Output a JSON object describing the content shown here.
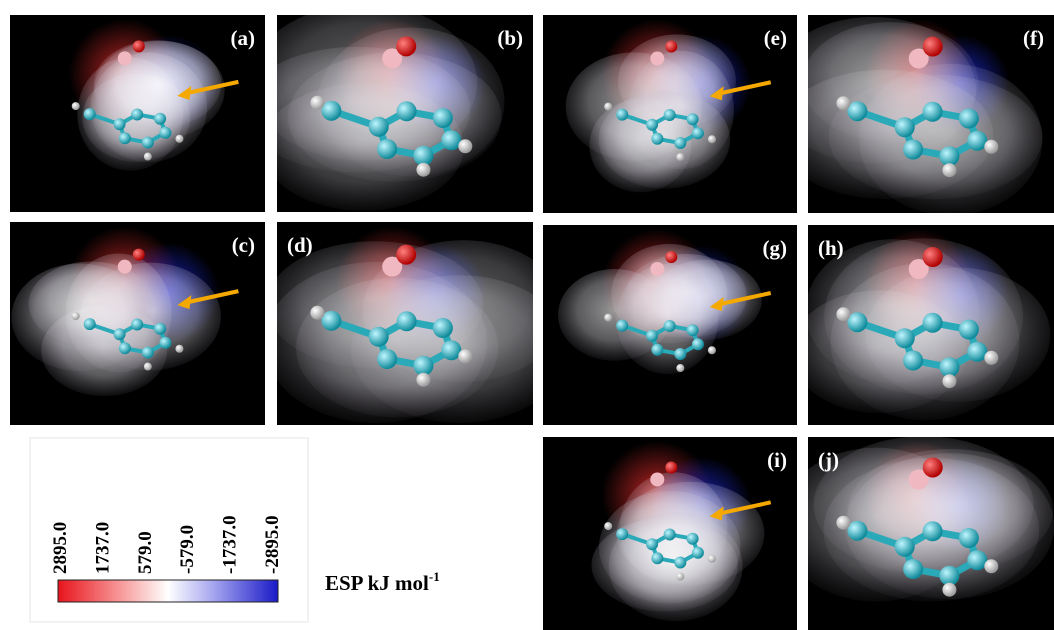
{
  "panels": [
    {
      "label": "(a)"
    },
    {
      "label": "(b)"
    },
    {
      "label": "(c)"
    },
    {
      "label": "(d)"
    },
    {
      "label": "(e)"
    },
    {
      "label": "(f)"
    },
    {
      "label": "(g)"
    },
    {
      "label": "(h)"
    },
    {
      "label": "(i)"
    },
    {
      "label": "(j)"
    }
  ],
  "colorbar": {
    "ticks": [
      "2895.0",
      "1737.0",
      "579.0",
      "-579.0",
      "-1737.0",
      "-2895.0"
    ],
    "label": "ESP kJ mol",
    "label_exponent": "-1"
  }
}
